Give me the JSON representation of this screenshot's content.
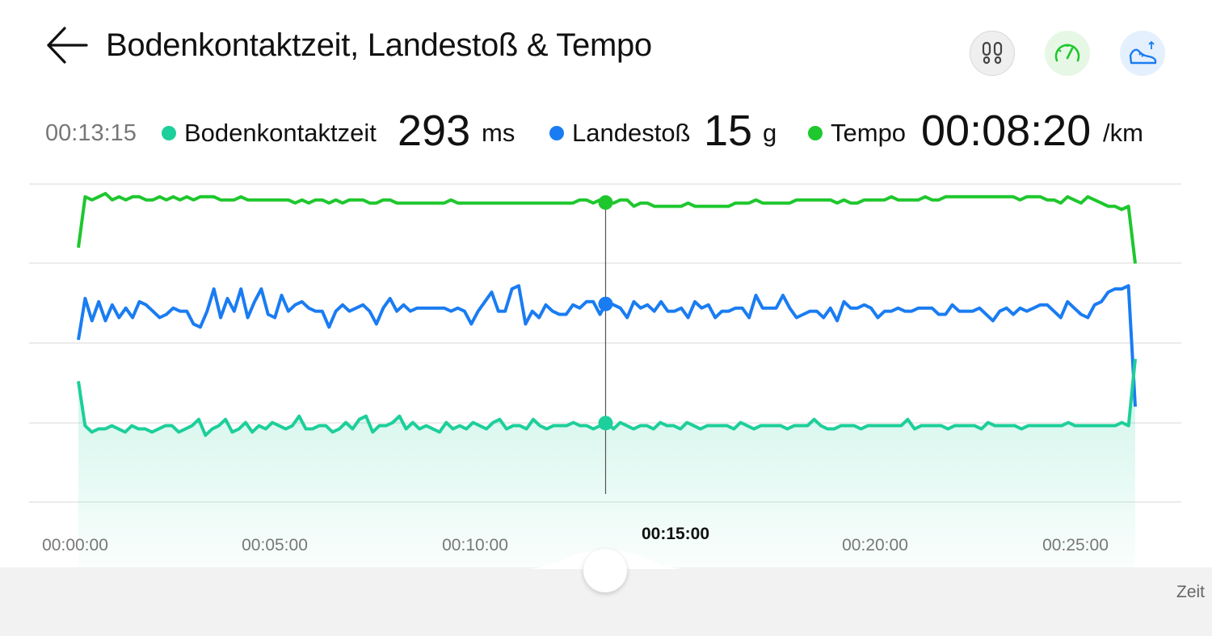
{
  "header": {
    "title": "Bodenkontaktzeit, Landestoß & Tempo"
  },
  "readout": {
    "time": "00:13:15",
    "metrics": [
      {
        "label": "Bodenkontaktzeit",
        "value": "293",
        "unit": "ms",
        "color": "#1dcf9a"
      },
      {
        "label": "Landestoß",
        "value": "15",
        "unit": "g",
        "color": "#1a7cf2"
      },
      {
        "label": "Tempo",
        "value": "00:08:20",
        "unit": "/km",
        "color": "#1ec72d"
      }
    ]
  },
  "bottom": {
    "axis_label": "Zeit"
  },
  "colors": {
    "ground_contact": "#1dcf9a",
    "impact": "#1a7cf2",
    "pace": "#1ec72d",
    "grid": "#e6e6e6"
  },
  "chart_data": {
    "type": "line",
    "x_unit": "minutes",
    "xlim": [
      0,
      26.5
    ],
    "x_ticks": [
      "00:00:00",
      "00:05:00",
      "00:10:00",
      "00:15:00",
      "00:20:00",
      "00:25:00"
    ],
    "active_tick": "00:15:00",
    "cursor_time": "00:13:15",
    "grid": true,
    "series": [
      {
        "name": "Bodenkontaktzeit",
        "normalized_level": [
          0.38,
          0.24,
          0.22,
          0.23,
          0.23,
          0.24,
          0.23,
          0.22,
          0.24,
          0.23,
          0.23,
          0.22,
          0.23,
          0.24,
          0.24,
          0.22,
          0.23,
          0.24,
          0.26,
          0.21,
          0.23,
          0.24,
          0.26,
          0.22,
          0.23,
          0.25,
          0.22,
          0.24,
          0.23,
          0.25,
          0.24,
          0.23,
          0.24,
          0.27,
          0.23,
          0.23,
          0.24,
          0.24,
          0.22,
          0.23,
          0.25,
          0.23,
          0.26,
          0.27,
          0.22,
          0.24,
          0.24,
          0.25,
          0.27,
          0.23,
          0.25,
          0.23,
          0.24,
          0.23,
          0.22,
          0.25,
          0.23,
          0.24,
          0.23,
          0.25,
          0.24,
          0.23,
          0.25,
          0.26,
          0.23,
          0.24,
          0.24,
          0.23,
          0.26,
          0.24,
          0.23,
          0.24,
          0.24,
          0.24,
          0.25,
          0.24,
          0.24,
          0.23,
          0.24,
          0.25,
          0.23,
          0.25,
          0.24,
          0.23,
          0.24,
          0.24,
          0.23,
          0.25,
          0.24,
          0.24,
          0.23,
          0.25,
          0.24,
          0.23,
          0.24,
          0.24,
          0.24,
          0.24,
          0.23,
          0.25,
          0.24,
          0.23,
          0.24,
          0.24,
          0.24,
          0.24,
          0.23,
          0.24,
          0.24,
          0.24,
          0.26,
          0.24,
          0.23,
          0.23,
          0.24,
          0.24,
          0.24,
          0.23,
          0.24,
          0.24,
          0.24,
          0.24,
          0.24,
          0.24,
          0.26,
          0.23,
          0.24,
          0.24,
          0.24,
          0.24,
          0.23,
          0.24,
          0.24,
          0.24,
          0.24,
          0.23,
          0.25,
          0.24,
          0.24,
          0.24,
          0.24,
          0.23,
          0.24,
          0.24,
          0.24,
          0.24,
          0.24,
          0.24,
          0.25,
          0.24,
          0.24,
          0.24,
          0.24,
          0.24,
          0.24,
          0.24,
          0.25,
          0.24,
          0.45
        ]
      },
      {
        "name": "Landestoß",
        "normalized_level": [
          0.51,
          0.64,
          0.57,
          0.63,
          0.57,
          0.62,
          0.58,
          0.61,
          0.58,
          0.63,
          0.62,
          0.6,
          0.58,
          0.59,
          0.61,
          0.6,
          0.6,
          0.56,
          0.55,
          0.6,
          0.67,
          0.58,
          0.64,
          0.6,
          0.67,
          0.58,
          0.63,
          0.67,
          0.59,
          0.58,
          0.65,
          0.6,
          0.62,
          0.63,
          0.61,
          0.6,
          0.6,
          0.55,
          0.6,
          0.62,
          0.6,
          0.61,
          0.62,
          0.6,
          0.56,
          0.61,
          0.64,
          0.6,
          0.62,
          0.6,
          0.61,
          0.61,
          0.61,
          0.61,
          0.61,
          0.6,
          0.61,
          0.6,
          0.56,
          0.6,
          0.63,
          0.66,
          0.6,
          0.6,
          0.67,
          0.68,
          0.56,
          0.6,
          0.58,
          0.62,
          0.6,
          0.59,
          0.59,
          0.62,
          0.61,
          0.63,
          0.63,
          0.59,
          0.63,
          0.62,
          0.61,
          0.58,
          0.63,
          0.61,
          0.62,
          0.6,
          0.63,
          0.6,
          0.6,
          0.61,
          0.58,
          0.63,
          0.61,
          0.62,
          0.58,
          0.6,
          0.6,
          0.61,
          0.61,
          0.58,
          0.65,
          0.61,
          0.61,
          0.61,
          0.65,
          0.61,
          0.58,
          0.59,
          0.6,
          0.6,
          0.58,
          0.61,
          0.57,
          0.63,
          0.61,
          0.61,
          0.62,
          0.61,
          0.58,
          0.6,
          0.6,
          0.61,
          0.6,
          0.6,
          0.61,
          0.61,
          0.61,
          0.59,
          0.59,
          0.62,
          0.6,
          0.6,
          0.6,
          0.61,
          0.59,
          0.57,
          0.6,
          0.61,
          0.59,
          0.61,
          0.6,
          0.61,
          0.62,
          0.62,
          0.6,
          0.58,
          0.63,
          0.61,
          0.59,
          0.58,
          0.62,
          0.63,
          0.66,
          0.67,
          0.67,
          0.68,
          0.3
        ]
      },
      {
        "name": "Tempo",
        "normalized_level": [
          0.8,
          0.96,
          0.95,
          0.96,
          0.97,
          0.95,
          0.96,
          0.95,
          0.96,
          0.96,
          0.95,
          0.95,
          0.96,
          0.95,
          0.96,
          0.95,
          0.96,
          0.95,
          0.96,
          0.96,
          0.96,
          0.95,
          0.95,
          0.95,
          0.96,
          0.95,
          0.95,
          0.95,
          0.95,
          0.95,
          0.95,
          0.95,
          0.94,
          0.95,
          0.94,
          0.95,
          0.95,
          0.94,
          0.95,
          0.94,
          0.95,
          0.95,
          0.95,
          0.94,
          0.94,
          0.95,
          0.95,
          0.94,
          0.94,
          0.94,
          0.94,
          0.94,
          0.94,
          0.94,
          0.94,
          0.95,
          0.94,
          0.94,
          0.94,
          0.94,
          0.94,
          0.94,
          0.94,
          0.94,
          0.94,
          0.94,
          0.94,
          0.94,
          0.94,
          0.94,
          0.94,
          0.94,
          0.94,
          0.94,
          0.95,
          0.95,
          0.94,
          0.95,
          0.94,
          0.94,
          0.95,
          0.95,
          0.93,
          0.94,
          0.94,
          0.93,
          0.93,
          0.93,
          0.93,
          0.93,
          0.94,
          0.93,
          0.93,
          0.93,
          0.93,
          0.93,
          0.93,
          0.94,
          0.94,
          0.94,
          0.95,
          0.94,
          0.94,
          0.94,
          0.94,
          0.94,
          0.95,
          0.95,
          0.95,
          0.95,
          0.95,
          0.95,
          0.94,
          0.95,
          0.94,
          0.94,
          0.95,
          0.95,
          0.95,
          0.95,
          0.96,
          0.95,
          0.95,
          0.95,
          0.95,
          0.96,
          0.95,
          0.95,
          0.96,
          0.96,
          0.96,
          0.96,
          0.96,
          0.96,
          0.96,
          0.96,
          0.96,
          0.96,
          0.96,
          0.95,
          0.96,
          0.96,
          0.96,
          0.95,
          0.95,
          0.94,
          0.96,
          0.95,
          0.94,
          0.96,
          0.95,
          0.94,
          0.93,
          0.93,
          0.92,
          0.93,
          0.75
        ]
      }
    ]
  }
}
